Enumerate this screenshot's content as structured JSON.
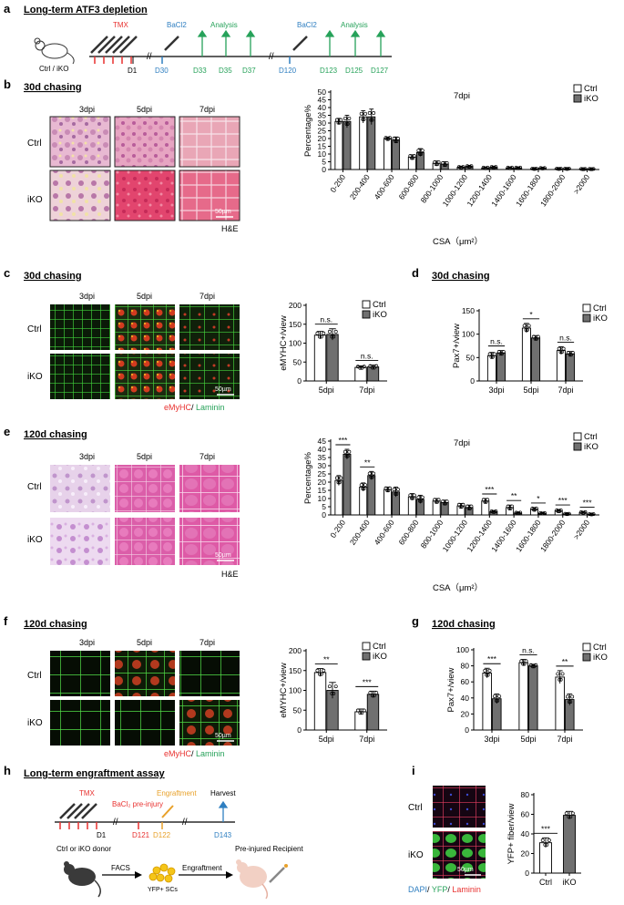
{
  "figure": {
    "panel_a": {
      "letter": "a",
      "title": "Long-term ATF3 depletion",
      "mouse_label": "Ctrl / iKO",
      "tmx": "TMX",
      "bacl2_1": "BaCl2",
      "analysis_1": "Analysis",
      "bacl2_2": "BaCl2",
      "analysis_2": "Analysis",
      "days": [
        "D1",
        "D30",
        "D33",
        "D35",
        "D37",
        "D120",
        "D123",
        "D125",
        "D127"
      ]
    },
    "panel_b": {
      "letter": "b",
      "title": "30d chasing",
      "cols": [
        "3dpi",
        "5dpi",
        "7dpi"
      ],
      "rows": [
        "Ctrl",
        "iKO"
      ],
      "scale": "50µm",
      "stain": "H&E"
    },
    "panel_c": {
      "letter": "c",
      "title": "30d chasing",
      "cols": [
        "3dpi",
        "5dpi",
        "7dpi"
      ],
      "rows": [
        "Ctrl",
        "iKO"
      ],
      "scale": "50µm",
      "stain_red": "eMyHC",
      "stain_sep": "/ ",
      "stain_green": "Laminin"
    },
    "panel_d": {
      "letter": "d",
      "title": "30d chasing"
    },
    "panel_e": {
      "letter": "e",
      "title": "120d chasing",
      "cols": [
        "3dpi",
        "5dpi",
        "7dpi"
      ],
      "rows": [
        "Ctrl",
        "iKO"
      ],
      "scale": "50µm",
      "stain": "H&E"
    },
    "panel_f": {
      "letter": "f",
      "title": "120d chasing",
      "cols": [
        "3dpi",
        "5dpi",
        "7dpi"
      ],
      "rows": [
        "Ctrl",
        "iKO"
      ],
      "scale": "50µm",
      "stain_red": "eMyHC",
      "stain_sep": "/ ",
      "stain_green": "Laminin"
    },
    "panel_g": {
      "letter": "g",
      "title": "120d chasing"
    },
    "panel_h": {
      "letter": "h",
      "title": "Long-term engraftment assay",
      "tmx": "TMX",
      "bacl2_preinjury": "BaCl₂ pre-injury",
      "engraftment_top": "Engraftment",
      "harvest": "Harvest",
      "days": [
        "D1",
        "D121",
        "D122",
        "D143"
      ],
      "donor": "Ctrl or iKO donor",
      "facs": "FACS",
      "engraftment_arrow": "Engraftment",
      "cells": "YFP+ SCs",
      "recipient": "Pre-injured  Recipient"
    },
    "panel_i": {
      "letter": "i",
      "rows": [
        "Ctrl",
        "iKO"
      ],
      "scale": "50µm",
      "stain_blue": "DAPI",
      "stain_sep1": "/ ",
      "stain_green": "YFP",
      "stain_sep2": "/ ",
      "stain_red": "Laminin"
    }
  },
  "colors": {
    "tmx": "#e8312f",
    "bacl2": "#2f7fc1",
    "analysis": "#27a25a",
    "engraft": "#e8a12a",
    "ctrl_bar": "#ffffff",
    "iko_bar": "#707070"
  },
  "chart_data": [
    {
      "id": "b_chart",
      "type": "bar",
      "title": "7dpi",
      "xlabel": "CSA（μm²）",
      "ylabel": "Percentage%",
      "ylim": [
        0,
        50
      ],
      "yticks": [
        0,
        5,
        10,
        15,
        20,
        25,
        30,
        35,
        40,
        45,
        50
      ],
      "categories": [
        "0-200",
        "200-400",
        "400-600",
        "600-800",
        "800-1000",
        "1000-1200",
        "1200-1400",
        "1400-1600",
        "1600-1800",
        "1800-2000",
        ">2000"
      ],
      "series": [
        {
          "name": "Ctrl",
          "values": [
            31,
            34,
            20,
            8,
            4,
            1.5,
            1,
            1,
            0.5,
            0.5,
            0.3
          ],
          "errors": [
            2,
            4,
            1,
            1.5,
            1.5,
            0.5,
            0.5,
            0.5,
            0.3,
            0.3,
            0.2
          ]
        },
        {
          "name": "iKO",
          "values": [
            31,
            34,
            19,
            11,
            3.5,
            2,
            1.5,
            1,
            0.8,
            0.5,
            0.3
          ],
          "errors": [
            4,
            5,
            2,
            2.5,
            1.5,
            0.5,
            0.5,
            0.5,
            0.3,
            0.3,
            0.2
          ]
        }
      ],
      "significance": [
        "",
        "",
        "",
        "",
        "",
        "",
        "",
        "",
        "",
        "",
        ""
      ],
      "legend": "top-right"
    },
    {
      "id": "c_chart",
      "type": "bar",
      "ylabel": "eMYHC+/view",
      "ylim": [
        0,
        200
      ],
      "yticks": [
        0,
        50,
        100,
        150,
        200
      ],
      "categories": [
        "5dpi",
        "7dpi"
      ],
      "series": [
        {
          "name": "Ctrl",
          "values": [
            121,
            36
          ],
          "errors": [
            10,
            4
          ]
        },
        {
          "name": "iKO",
          "values": [
            123,
            37
          ],
          "errors": [
            15,
            5
          ]
        }
      ],
      "significance": [
        "n.s.",
        "n.s."
      ],
      "legend": "top-right"
    },
    {
      "id": "d_chart",
      "type": "bar",
      "ylabel": "Pax7+/view",
      "ylim": [
        0,
        150
      ],
      "yticks": [
        0,
        50,
        100,
        150
      ],
      "categories": [
        "3dpi",
        "5dpi",
        "7dpi"
      ],
      "series": [
        {
          "name": "Ctrl",
          "values": [
            54,
            113,
            65
          ],
          "errors": [
            7,
            10,
            8
          ]
        },
        {
          "name": "iKO",
          "values": [
            60,
            92,
            58
          ],
          "errors": [
            5,
            5,
            5
          ]
        }
      ],
      "significance": [
        "n.s.",
        "*",
        "n.s."
      ],
      "legend": "top-right"
    },
    {
      "id": "e_chart",
      "type": "bar",
      "title": "7dpi",
      "xlabel": "CSA（μm²）",
      "ylabel": "Percentage%",
      "ylim": [
        0,
        45
      ],
      "yticks": [
        0,
        5,
        10,
        15,
        20,
        25,
        30,
        35,
        40,
        45
      ],
      "categories": [
        "0-200",
        "200-400",
        "400-600",
        "600-800",
        "800-1000",
        "1000-1200",
        "1200-1400",
        "1400-1600",
        "1600-1800",
        "1800-2000",
        ">2000"
      ],
      "series": [
        {
          "name": "Ctrl",
          "values": [
            21,
            17,
            15.5,
            11,
            8.5,
            5.5,
            8.5,
            4.5,
            3.5,
            2.5,
            1.5
          ],
          "errors": [
            3,
            2.5,
            1.5,
            2,
            1.5,
            1.5,
            1.5,
            1.5,
            1,
            0.8,
            0.5
          ]
        },
        {
          "name": "iKO",
          "values": [
            37,
            24,
            14,
            9.5,
            7.5,
            4.5,
            2,
            1.2,
            1,
            0.6,
            0.4
          ],
          "errors": [
            3,
            2.5,
            3,
            2.5,
            1.5,
            1.5,
            0.5,
            0.5,
            0.4,
            0.3,
            0.2
          ]
        }
      ],
      "significance": [
        "***",
        "**",
        "",
        "",
        "",
        "",
        "***",
        "**",
        "*",
        "***",
        "***"
      ],
      "legend": "top-right"
    },
    {
      "id": "f_chart",
      "type": "bar",
      "ylabel": "eMYHC+/view",
      "ylim": [
        0,
        200
      ],
      "yticks": [
        0,
        50,
        100,
        150,
        200
      ],
      "categories": [
        "5dpi",
        "7dpi"
      ],
      "series": [
        {
          "name": "Ctrl",
          "values": [
            145,
            46
          ],
          "errors": [
            10,
            7
          ]
        },
        {
          "name": "iKO",
          "values": [
            100,
            90
          ],
          "errors": [
            20,
            8
          ]
        }
      ],
      "significance": [
        "**",
        "***"
      ],
      "legend": "top-right"
    },
    {
      "id": "g_chart",
      "type": "bar",
      "ylabel": "Pax7+/view",
      "ylim": [
        0,
        100
      ],
      "yticks": [
        0,
        20,
        40,
        60,
        80,
        100
      ],
      "categories": [
        "3dpi",
        "5dpi",
        "7dpi"
      ],
      "series": [
        {
          "name": "Ctrl",
          "values": [
            71,
            84,
            66
          ],
          "errors": [
            6,
            4,
            8
          ]
        },
        {
          "name": "iKO",
          "values": [
            39,
            80,
            38
          ],
          "errors": [
            6,
            2,
            7
          ]
        }
      ],
      "significance": [
        "***",
        "n.s.",
        "**"
      ],
      "legend": "top-right"
    },
    {
      "id": "i_chart",
      "type": "bar",
      "ylabel": "YFP+ fiber/view",
      "ylim": [
        0,
        80
      ],
      "yticks": [
        0,
        20,
        40,
        60,
        80
      ],
      "categories": [
        "Ctrl",
        "iKO"
      ],
      "series": [
        {
          "name": "YFP+ fiber/view",
          "values": [
            31,
            59
          ],
          "errors": [
            5,
            4
          ]
        }
      ],
      "significance": [
        "***"
      ]
    }
  ]
}
